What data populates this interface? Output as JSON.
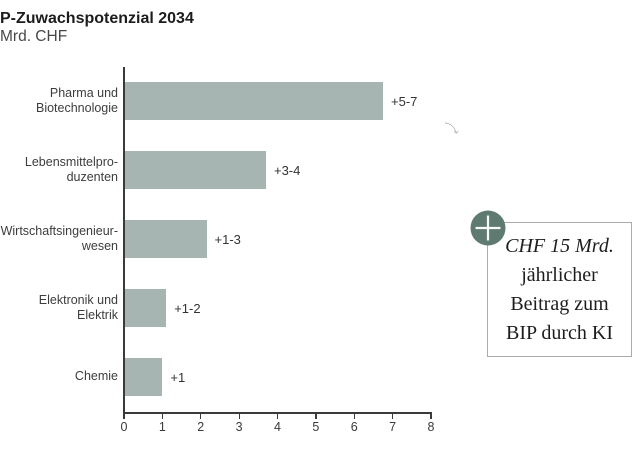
{
  "header": {
    "title": "P-Zuwachspotenzial 2034",
    "subtitle": "Mrd. CHF"
  },
  "chart_data": {
    "type": "bar",
    "orientation": "horizontal",
    "title": "P-Zuwachspotenzial 2034",
    "unit_label": "Mrd. CHF",
    "categories": [
      "Pharma und Biotechnologie",
      "Lebensmittelproduzenten",
      "Wirtschaftsingenieurwesen",
      "Elektronik und Elektrik",
      "Chemie"
    ],
    "category_label_lines": [
      [
        "Pharma und",
        "Biotechnologie"
      ],
      [
        "Lebensmittelpro-",
        "duzenten"
      ],
      [
        "Wirtschaftsingenieur-",
        "wesen"
      ],
      [
        "Elektronik und",
        "Elektrik"
      ],
      [
        "Chemie"
      ]
    ],
    "values": [
      6.75,
      3.7,
      2.15,
      1.1,
      1.0
    ],
    "value_labels": [
      "+5-7",
      "+3-4",
      "+1-3",
      "+1-2",
      "+1"
    ],
    "xlim": [
      0,
      8
    ],
    "x_ticks": [
      "0",
      "1",
      "2",
      "3",
      "4",
      "5",
      "6",
      "7",
      "8"
    ],
    "grid": false,
    "legend": "none",
    "bar_color": "#a7b5b2"
  },
  "annotation": {
    "icon": "plus-icon",
    "icon_color": "#5e7a71",
    "lines": [
      "CHF 15 Mrd.",
      "jährlicher",
      "Beitrag zum",
      "BIP durch KI"
    ]
  },
  "colors": {
    "bar": "#a7b5b2",
    "axis": "#3a3a3a",
    "label_text": "#3d3d3d",
    "accent_circle": "#5e7a71",
    "box_border": "#ababab",
    "arrow": "#2c2c2c"
  }
}
